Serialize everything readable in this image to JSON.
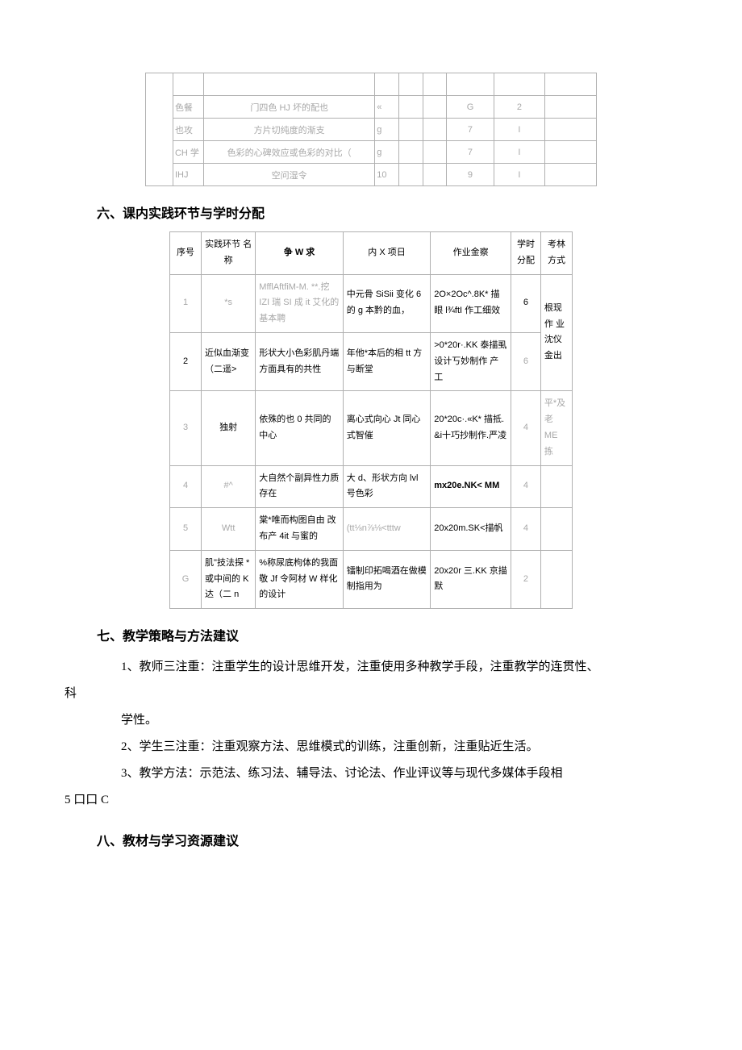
{
  "table1": {
    "rows": [
      [
        "",
        "色餐",
        "门四色 HJ 坏的配也",
        "«",
        "",
        "",
        "G",
        "2",
        ""
      ],
      [
        "",
        "也攻",
        "方片切纯度的渐支",
        "g",
        "",
        "",
        "7",
        "I",
        ""
      ],
      [
        "",
        "CH 学",
        "色彩的心碑效应或色彩的对比（",
        "g",
        "",
        "",
        "7",
        "I",
        ""
      ],
      [
        "",
        "IHJ",
        "空问湿令",
        "10",
        "",
        "",
        "9",
        "I",
        ""
      ]
    ]
  },
  "heading6": "六、课内实践环节与学时分配",
  "table2": {
    "header": [
      "序号",
      "实践环节 名称",
      "争 W 求",
      "内 X 项日",
      "作业金察",
      "学时 分配",
      "考林 方式"
    ],
    "rows": [
      {
        "c0": "1",
        "c1": "*s",
        "c2": "MfflAftfiM-M. **.挖 IZI 瑞 SI 成 it 艾化的基本聘",
        "c3": "中元骨 SiSii 变化 6 的 g 本黔的血，",
        "c4": "2O×2Oc^.8K* 描眼 l¾ftI 作工细效",
        "c5": "6",
        "c6": "根现作 业沈仪 金出"
      },
      {
        "c0": "2",
        "c1": "近似血渐变（二遥>",
        "c2": "形状大小色彩肌丹端方面具有的共性",
        "c3": "年他*本后的相 tt 方与断堂",
        "c4": ">0*20r·.KK 泰描虱 设计丂妙制作 产工",
        "c5": "6",
        "c6": "平*及老 ME 拣"
      },
      {
        "c0": "3",
        "c1": "独射",
        "c2": "依殊的也 0 共同的中心",
        "c3": "离心式向心 Jt 同心式智催",
        "c4": "20*20c·.«K* 描抵. &i十巧抄制作.严凌",
        "c5": "4",
        "c6": ""
      },
      {
        "c0": "4",
        "c1": "#^",
        "c2": "大自然个副异性力质存在",
        "c3": "大 d、形状方向 lvl 号色彩",
        "c4": "mx20e.NK< MM",
        "c5": "4",
        "c6": ""
      },
      {
        "c0": "5",
        "c1": "Wtt",
        "c2": "棠*唯而构图自由 改布产 4it 与蜜的",
        "c3": "(tt⅛n⅞⅛<tttw",
        "c4": "20x20m.SK<描帆",
        "c5": "4",
        "c6": ""
      },
      {
        "c0": "G",
        "c1": "肌\"技法探 *或中间的 K 达（二 n",
        "c2": "%称尿底枸体的我面敬 Jf 令阿材 W 样化的设计",
        "c3": "镭制印拓喝酒在做模制指用为",
        "c4": "20x20r 三.KK 京描默",
        "c5": "2",
        "c6": ""
      }
    ]
  },
  "heading7": "七、教学策略与方法建议",
  "para1a": "1、教师三注重：注重学生的设计思维开发，注重使用多种教学手段，注重教学的连贯性、",
  "para1b": "科",
  "para1c": "学性。",
  "para2": "2、学生三注重：注重观察方法、思维模式的训练，注重创新，注重贴近生活。",
  "para3a": "3、教学方法：示范法、练习法、辅导法、讨论法、作业评议等与现代多媒体手段相",
  "para3b": "5 口口 C",
  "heading8": "八、教材与学习资源建议"
}
